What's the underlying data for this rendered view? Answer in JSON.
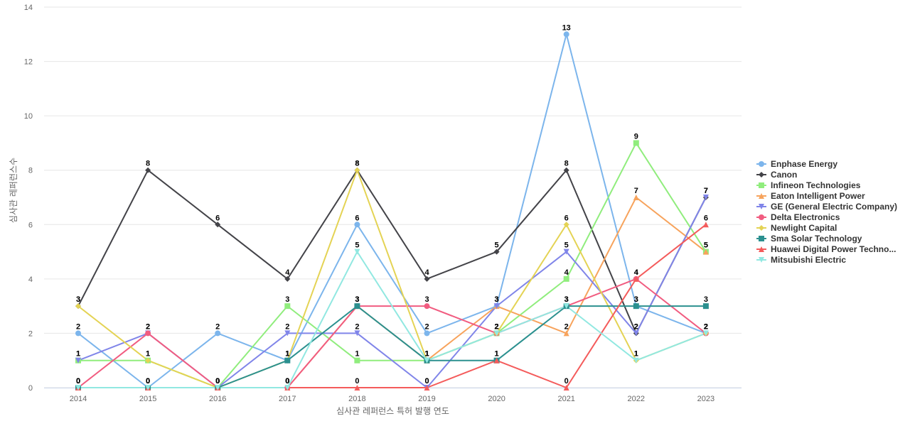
{
  "chart_data": {
    "type": "line",
    "title": "",
    "xlabel": "심사관 레퍼런스 특허 발행 연도",
    "ylabel": "심사관 레퍼런스수",
    "x": [
      "2014",
      "2015",
      "2016",
      "2017",
      "2018",
      "2019",
      "2020",
      "2021",
      "2022",
      "2023"
    ],
    "ylim": [
      0,
      14
    ],
    "yticks": [
      0,
      2,
      4,
      6,
      8,
      10,
      12,
      14
    ],
    "grid": true,
    "legend_position": "right",
    "series": [
      {
        "name": "Enphase Energy",
        "color": "#7cb5ec",
        "marker": "circle",
        "values": [
          2,
          0,
          2,
          1,
          6,
          2,
          3,
          13,
          3,
          2
        ],
        "labels": [
          2,
          0,
          2,
          1,
          6,
          2,
          3,
          13,
          3,
          2
        ]
      },
      {
        "name": "Canon",
        "color": "#434348",
        "marker": "diamond",
        "values": [
          3,
          8,
          6,
          4,
          8,
          4,
          5,
          8,
          2,
          7
        ],
        "labels": [
          3,
          8,
          6,
          4,
          8,
          4,
          5,
          8,
          2,
          7
        ]
      },
      {
        "name": "Infineon Technologies",
        "color": "#90ed7d",
        "marker": "square",
        "values": [
          1,
          1,
          0,
          3,
          1,
          1,
          2,
          4,
          9,
          5
        ],
        "labels": [
          1,
          1,
          0,
          3,
          1,
          1,
          2,
          4,
          9,
          5
        ]
      },
      {
        "name": "Eaton Intelligent Power",
        "color": "#f7a35c",
        "marker": "triangle",
        "values": [
          0,
          0,
          0,
          0,
          3,
          1,
          3,
          2,
          7,
          5
        ],
        "labels": [
          0,
          0,
          0,
          0,
          3,
          1,
          3,
          2,
          7,
          5
        ]
      },
      {
        "name": "GE (General Electric Company)",
        "color": "#8085e9",
        "marker": "triangle-down",
        "values": [
          1,
          2,
          0,
          2,
          2,
          0,
          3,
          5,
          2,
          7
        ],
        "labels": [
          1,
          2,
          0,
          2,
          2,
          0,
          3,
          5,
          2,
          7
        ]
      },
      {
        "name": "Delta Electronics",
        "color": "#f15c80",
        "marker": "circle",
        "values": [
          0,
          2,
          0,
          0,
          3,
          3,
          2,
          3,
          4,
          2
        ],
        "labels": [
          0,
          2,
          0,
          0,
          3,
          3,
          2,
          3,
          4,
          2
        ]
      },
      {
        "name": "Newlight Capital",
        "color": "#e4d354",
        "marker": "diamond",
        "values": [
          3,
          1,
          0,
          1,
          8,
          1,
          2,
          6,
          1,
          2
        ],
        "labels": [
          3,
          1,
          0,
          1,
          8,
          1,
          2,
          6,
          1,
          2
        ]
      },
      {
        "name": "Sma Solar Technology",
        "color": "#2b908f",
        "marker": "square",
        "values": [
          0,
          0,
          0,
          1,
          3,
          1,
          1,
          3,
          3,
          3
        ],
        "labels": [
          0,
          0,
          0,
          1,
          3,
          1,
          1,
          3,
          3,
          3
        ]
      },
      {
        "name": "Huawei Digital Power Techno...",
        "color": "#f45b5b",
        "marker": "triangle",
        "values": [
          0,
          0,
          0,
          0,
          0,
          0,
          1,
          0,
          4,
          6
        ],
        "labels": [
          0,
          0,
          0,
          0,
          0,
          0,
          1,
          0,
          4,
          6
        ]
      },
      {
        "name": "Mitsubishi Electric",
        "color": "#91e8e1",
        "marker": "triangle-down",
        "values": [
          0,
          0,
          0,
          0,
          5,
          1,
          2,
          3,
          1,
          2
        ],
        "labels": [
          0,
          0,
          0,
          0,
          5,
          1,
          2,
          3,
          1,
          2
        ]
      }
    ]
  }
}
